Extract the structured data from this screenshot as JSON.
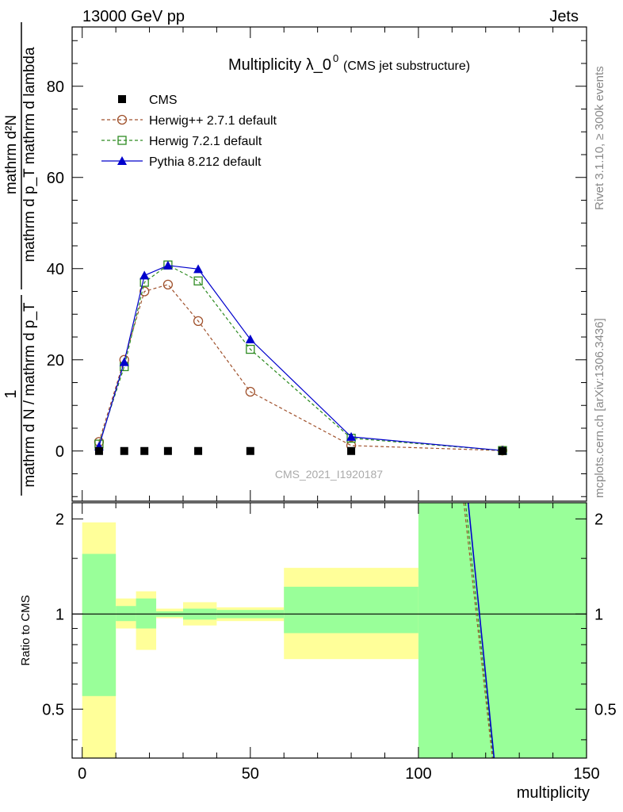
{
  "header": {
    "energy_label": "13000 GeV pp",
    "process_label": "Jets",
    "side_note_top": "Rivet 3.1.10, ≥ 300k events",
    "side_note_bottom": "mcplots.cern.ch [arXiv:1306.3436]",
    "watermark": "CMS_2021_I1920187"
  },
  "chart_data": [
    {
      "type": "line",
      "title_main": "Multiplicity λ_0",
      "title_sup": "0",
      "title_note": "(CMS jet substructure)",
      "ylabel_numerator": "mathrm d²N",
      "ylabel_denominator": "mathrm d p_T mathrm d lambda",
      "ylabel_factor_numerator": "1",
      "ylabel_factor_denominator": "mathrm d N / mathrm d p_T",
      "ylim": [
        -11,
        93
      ],
      "xlim": [
        -3,
        150
      ],
      "yticks": [
        0,
        20,
        40,
        60,
        80
      ],
      "xticks": [
        0,
        50,
        100,
        150
      ],
      "legend_position": "top-left",
      "series": [
        {
          "name": "CMS",
          "style": "data-square",
          "color": "#000000",
          "x": [
            5,
            12.5,
            18.5,
            25.5,
            34.5,
            50,
            80,
            125
          ],
          "y": [
            0,
            0,
            0,
            0,
            0,
            0,
            0,
            0
          ]
        },
        {
          "name": "Herwig++ 2.7.1 default",
          "style": "dashed-open-circle",
          "color": "#a0522d",
          "x": [
            5,
            12.5,
            18.5,
            25.5,
            34.5,
            50,
            80,
            125
          ],
          "y": [
            2,
            20,
            35,
            36.5,
            28.5,
            13,
            1.2,
            0.1
          ]
        },
        {
          "name": "Herwig 7.2.1 default",
          "style": "dashed-open-square",
          "color": "#2e8b22",
          "x": [
            5,
            12.5,
            18.5,
            25.5,
            34.5,
            50,
            80,
            125
          ],
          "y": [
            1.5,
            18.5,
            37,
            40.8,
            37.3,
            22.3,
            2.8,
            0.1
          ]
        },
        {
          "name": "Pythia 8.212 default",
          "style": "solid-filled-triangle",
          "color": "#0000cc",
          "x": [
            5,
            12.5,
            18.5,
            25.5,
            34.5,
            50,
            80,
            125
          ],
          "y": [
            1,
            19.5,
            38.5,
            40.7,
            39.9,
            24.5,
            3.1,
            0.1
          ]
        }
      ]
    },
    {
      "type": "area",
      "ylabel": "Ratio to CMS",
      "xlabel": "multiplicity",
      "ylim": [
        0.35,
        2.25
      ],
      "xlim": [
        -3,
        150
      ],
      "yticks": [
        0.5,
        1,
        2
      ],
      "ytick_labels": [
        "0.5",
        "1",
        "2"
      ],
      "xticks": [
        0,
        50,
        100,
        150
      ],
      "reference_line": 1,
      "bins": [
        {
          "x0": 0,
          "x1": 10,
          "yellow": [
            0.35,
            1.95
          ],
          "green": [
            0.55,
            1.55
          ]
        },
        {
          "x0": 10,
          "x1": 16,
          "yellow": [
            0.9,
            1.12
          ],
          "green": [
            0.95,
            1.06
          ]
        },
        {
          "x0": 16,
          "x1": 22,
          "yellow": [
            0.77,
            1.18
          ],
          "green": [
            0.9,
            1.12
          ]
        },
        {
          "x0": 22,
          "x1": 30,
          "yellow": [
            0.97,
            1.04
          ],
          "green": [
            0.98,
            1.02
          ]
        },
        {
          "x0": 30,
          "x1": 40,
          "yellow": [
            0.92,
            1.09
          ],
          "green": [
            0.96,
            1.04
          ]
        },
        {
          "x0": 40,
          "x1": 60,
          "yellow": [
            0.95,
            1.05
          ],
          "green": [
            0.97,
            1.03
          ]
        },
        {
          "x0": 60,
          "x1": 100,
          "yellow": [
            0.72,
            1.4
          ],
          "green": [
            0.87,
            1.22
          ]
        },
        {
          "x0": 100,
          "x1": 150,
          "yellow": [
            0.35,
            2.25
          ],
          "green": [
            0.35,
            2.25
          ]
        }
      ],
      "ratio_lines": [
        {
          "name": "Herwig++ 2.7.1 default",
          "color": "#a0522d",
          "dashed": true,
          "x": [
            113.5,
            122
          ],
          "y": [
            2.25,
            0.35
          ]
        },
        {
          "name": "Herwig 7.2.1 default",
          "color": "#2e8b22",
          "dashed": true,
          "x": [
            114,
            122.3
          ],
          "y": [
            2.25,
            0.35
          ]
        },
        {
          "name": "Pythia 8.212 default",
          "color": "#0000cc",
          "dashed": false,
          "x": [
            114.8,
            122.5
          ],
          "y": [
            2.25,
            0.35
          ]
        }
      ]
    }
  ]
}
